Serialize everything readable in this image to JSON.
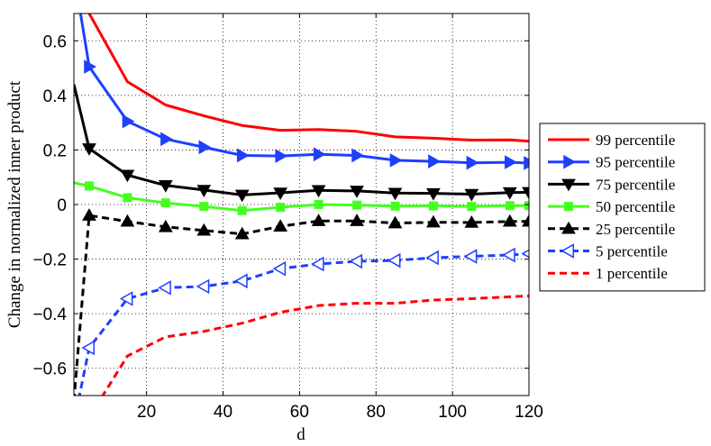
{
  "chart_data": {
    "type": "line",
    "xlabel": "d",
    "ylabel": "Change in normalized inner product",
    "xlim": [
      1,
      120
    ],
    "ylim": [
      -0.7,
      0.7
    ],
    "xticks": [
      20,
      40,
      60,
      80,
      100,
      120
    ],
    "yticks": [
      -0.6,
      -0.4,
      -0.2,
      0,
      0.2,
      0.4,
      0.6
    ],
    "xtick_labels": [
      "20",
      "40",
      "60",
      "80",
      "100",
      "120"
    ],
    "ytick_labels": [
      "−0.6",
      "−0.4",
      "−0.2",
      "0",
      "0.2",
      "0.4",
      "0.6"
    ],
    "grid": true,
    "legend_position": "right, outside plot",
    "series": [
      {
        "name": "99 percentile",
        "color": "#ff0000",
        "dash": "solid",
        "marker": "none",
        "x": [
          1,
          5,
          15,
          25,
          35,
          45,
          55,
          65,
          75,
          85,
          95,
          105,
          115,
          120
        ],
        "y": [
          1.2,
          0.7,
          0.45,
          0.365,
          0.325,
          0.29,
          0.272,
          0.275,
          0.268,
          0.248,
          0.243,
          0.236,
          0.237,
          0.232
        ]
      },
      {
        "name": "95 percentile",
        "color": "#1f3fff",
        "dash": "solid",
        "marker": "triangle-right-filled",
        "x": [
          1,
          5,
          15,
          25,
          35,
          45,
          55,
          65,
          75,
          85,
          95,
          105,
          115,
          120
        ],
        "y": [
          0.85,
          0.505,
          0.305,
          0.24,
          0.21,
          0.18,
          0.178,
          0.184,
          0.18,
          0.162,
          0.158,
          0.153,
          0.155,
          0.152
        ]
      },
      {
        "name": "75 percentile",
        "color": "#000000",
        "dash": "solid",
        "marker": "triangle-down-filled",
        "x": [
          1,
          5,
          15,
          25,
          35,
          45,
          55,
          65,
          75,
          85,
          95,
          105,
          115,
          120
        ],
        "y": [
          0.44,
          0.205,
          0.108,
          0.07,
          0.053,
          0.035,
          0.043,
          0.052,
          0.05,
          0.042,
          0.041,
          0.038,
          0.044,
          0.045
        ]
      },
      {
        "name": "50 percentile",
        "color": "#44ff1f",
        "dash": "solid",
        "marker": "square",
        "x": [
          1,
          5,
          15,
          25,
          35,
          45,
          55,
          65,
          75,
          85,
          95,
          105,
          115,
          120
        ],
        "y": [
          0.08,
          0.068,
          0.025,
          0.006,
          -0.007,
          -0.022,
          -0.01,
          0.0,
          -0.002,
          -0.006,
          -0.005,
          -0.007,
          -0.004,
          -0.004
        ]
      },
      {
        "name": "25 percentile",
        "color": "#000000",
        "dash": "dashed",
        "marker": "triangle-up-filled",
        "x": [
          1,
          5,
          15,
          25,
          35,
          45,
          55,
          65,
          75,
          85,
          95,
          105,
          115,
          120
        ],
        "y": [
          -0.72,
          -0.04,
          -0.062,
          -0.082,
          -0.095,
          -0.108,
          -0.08,
          -0.06,
          -0.06,
          -0.068,
          -0.065,
          -0.066,
          -0.062,
          -0.062
        ]
      },
      {
        "name": "5 percentile",
        "color": "#1f3fff",
        "dash": "dashed",
        "marker": "triangle-left-open",
        "x": [
          1,
          5,
          15,
          25,
          35,
          45,
          55,
          65,
          75,
          85,
          95,
          105,
          115,
          120
        ],
        "y": [
          -0.8,
          -0.525,
          -0.345,
          -0.305,
          -0.3,
          -0.28,
          -0.235,
          -0.218,
          -0.208,
          -0.205,
          -0.195,
          -0.19,
          -0.185,
          -0.18
        ]
      },
      {
        "name": "1 percentile",
        "color": "#ff0000",
        "dash": "dashed",
        "marker": "none",
        "x": [
          5,
          15,
          25,
          35,
          45,
          55,
          65,
          75,
          85,
          95,
          105,
          115,
          120
        ],
        "y": [
          -0.78,
          -0.555,
          -0.485,
          -0.465,
          -0.435,
          -0.395,
          -0.37,
          -0.362,
          -0.362,
          -0.35,
          -0.345,
          -0.338,
          -0.335
        ]
      }
    ]
  }
}
